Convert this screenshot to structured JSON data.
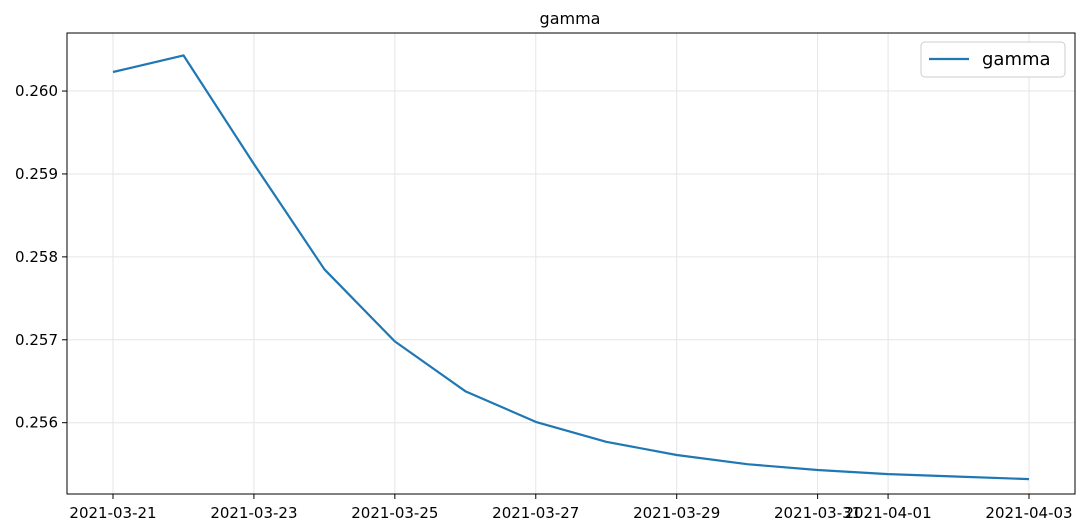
{
  "chart_data": {
    "type": "line",
    "title": "gamma",
    "xlabel": "",
    "ylabel": "",
    "x": [
      "2021-03-21",
      "2021-03-22",
      "2021-03-23",
      "2021-03-24",
      "2021-03-25",
      "2021-03-26",
      "2021-03-27",
      "2021-03-28",
      "2021-03-29",
      "2021-03-30",
      "2021-03-31",
      "2021-04-01",
      "2021-04-02",
      "2021-04-03"
    ],
    "series": [
      {
        "name": "gamma",
        "color": "#1f77b4",
        "values": [
          0.26023,
          0.26043,
          0.25912,
          0.25785,
          0.25698,
          0.25638,
          0.25601,
          0.25577,
          0.25561,
          0.2555,
          0.25543,
          0.25538,
          0.25535,
          0.25532
        ]
      }
    ],
    "xticks": [
      "2021-03-21",
      "2021-03-23",
      "2021-03-25",
      "2021-03-27",
      "2021-03-29",
      "2021-03-31",
      "2021-04-01",
      "2021-04-03"
    ],
    "yticks": [
      "0.256",
      "0.257",
      "0.258",
      "0.259",
      "0.260"
    ],
    "ylim": [
      0.25514,
      0.2607
    ],
    "grid": true,
    "legend": "top-right"
  }
}
